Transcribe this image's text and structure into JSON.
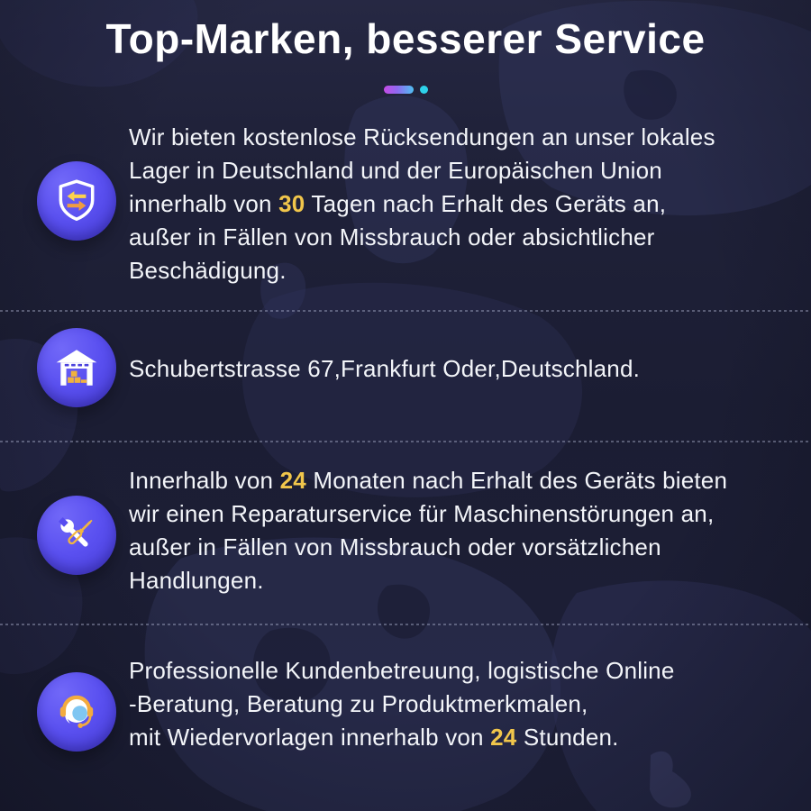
{
  "header": {
    "title": "Top-Marken, besserer Service"
  },
  "divider": {
    "pill_gradient": [
      "#c64be6",
      "#4fc0f2"
    ],
    "dot_color": "#2ed2ea"
  },
  "theme": {
    "background": "#1d1f37",
    "map_silhouette": "#30335a",
    "text_color": "#f3f5f9",
    "highlight_color": "#f1c64b",
    "icon_badge_color": "#5a50f0",
    "title_color": "#ffffff"
  },
  "features": [
    {
      "icon": "shield-swap-icon",
      "lines": [
        [
          {
            "t": "Wir bieten kostenlose Rücksendungen an unser lokales"
          }
        ],
        [
          {
            "t": "Lager in Deutschland und der Europäischen Union"
          }
        ],
        [
          {
            "t": "innerhalb von "
          },
          {
            "t": "30",
            "hl": true
          },
          {
            "t": " Tagen nach Erhalt des Geräts an,"
          }
        ],
        [
          {
            "t": "außer in Fällen von Missbrauch oder absichtlicher"
          }
        ],
        [
          {
            "t": "Beschädigung."
          }
        ]
      ]
    },
    {
      "icon": "warehouse-icon",
      "lines": [
        [
          {
            "t": "Schubertstrasse 67,Frankfurt Oder,Deutschland."
          }
        ]
      ]
    },
    {
      "icon": "repair-tools-icon",
      "lines": [
        [
          {
            "t": "Innerhalb von "
          },
          {
            "t": "24",
            "hl": true
          },
          {
            "t": " Monaten nach Erhalt des Geräts bieten"
          }
        ],
        [
          {
            "t": "wir einen Reparaturservice für Maschinenstörungen an,"
          }
        ],
        [
          {
            "t": "außer in Fällen von Missbrauch oder vorsätzlichen"
          }
        ],
        [
          {
            "t": "Handlungen."
          }
        ]
      ]
    },
    {
      "icon": "headset-support-icon",
      "lines": [
        [
          {
            "t": "Professionelle Kundenbetreuung, logistische Online"
          }
        ],
        [
          {
            "t": "-Beratung, Beratung zu Produktmerkmalen,"
          }
        ],
        [
          {
            "t": "mit Wiedervorlagen innerhalb von "
          },
          {
            "t": "24",
            "hl": true
          },
          {
            "t": " Stunden."
          }
        ]
      ]
    }
  ]
}
